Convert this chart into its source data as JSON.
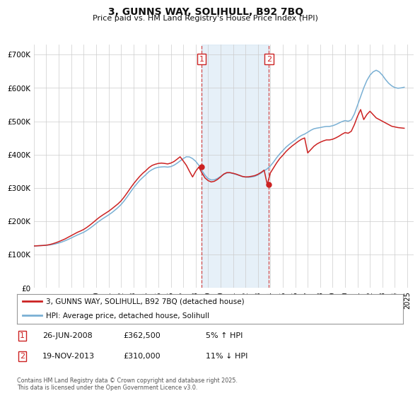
{
  "title": "3, GUNNS WAY, SOLIHULL, B92 7BQ",
  "subtitle": "Price paid vs. HM Land Registry's House Price Index (HPI)",
  "ylabel_ticks": [
    "£0",
    "£100K",
    "£200K",
    "£300K",
    "£400K",
    "£500K",
    "£600K",
    "£700K"
  ],
  "ytick_vals": [
    0,
    100000,
    200000,
    300000,
    400000,
    500000,
    600000,
    700000
  ],
  "ylim": [
    0,
    730000
  ],
  "xlim_start": 1995.0,
  "xlim_end": 2025.5,
  "marker1_date": 2008.48,
  "marker2_date": 2013.89,
  "marker1_label": "1",
  "marker2_label": "2",
  "marker1_price": 362500,
  "marker2_price": 310000,
  "shade_color": "#c8dff0",
  "shade_alpha": 0.45,
  "vline_color": "#cc2222",
  "vline_alpha": 0.8,
  "grid_color": "#cccccc",
  "legend_entries": [
    "3, GUNNS WAY, SOLIHULL, B92 7BQ (detached house)",
    "HPI: Average price, detached house, Solihull"
  ],
  "legend_colors": [
    "#cc2222",
    "#7ab0d4"
  ],
  "table_rows": [
    [
      "1",
      "26-JUN-2008",
      "£362,500",
      "5% ↑ HPI"
    ],
    [
      "2",
      "19-NOV-2013",
      "£310,000",
      "11% ↓ HPI"
    ]
  ],
  "footnote": "Contains HM Land Registry data © Crown copyright and database right 2025.\nThis data is licensed under the Open Government Licence v3.0.",
  "bg_color": "#ffffff",
  "plot_bg_color": "#ffffff",
  "hpi_color": "#7ab0d4",
  "price_color": "#cc2222",
  "hpi_data_x": [
    1995.0,
    1995.25,
    1995.5,
    1995.75,
    1996.0,
    1996.25,
    1996.5,
    1996.75,
    1997.0,
    1997.25,
    1997.5,
    1997.75,
    1998.0,
    1998.25,
    1998.5,
    1998.75,
    1999.0,
    1999.25,
    1999.5,
    1999.75,
    2000.0,
    2000.25,
    2000.5,
    2000.75,
    2001.0,
    2001.25,
    2001.5,
    2001.75,
    2002.0,
    2002.25,
    2002.5,
    2002.75,
    2003.0,
    2003.25,
    2003.5,
    2003.75,
    2004.0,
    2004.25,
    2004.5,
    2004.75,
    2005.0,
    2005.25,
    2005.5,
    2005.75,
    2006.0,
    2006.25,
    2006.5,
    2006.75,
    2007.0,
    2007.25,
    2007.5,
    2007.75,
    2008.0,
    2008.25,
    2008.5,
    2008.75,
    2009.0,
    2009.25,
    2009.5,
    2009.75,
    2010.0,
    2010.25,
    2010.5,
    2010.75,
    2011.0,
    2011.25,
    2011.5,
    2011.75,
    2012.0,
    2012.25,
    2012.5,
    2012.75,
    2013.0,
    2013.25,
    2013.5,
    2013.75,
    2014.0,
    2014.25,
    2014.5,
    2014.75,
    2015.0,
    2015.25,
    2015.5,
    2015.75,
    2016.0,
    2016.25,
    2016.5,
    2016.75,
    2017.0,
    2017.25,
    2017.5,
    2017.75,
    2018.0,
    2018.25,
    2018.5,
    2018.75,
    2019.0,
    2019.25,
    2019.5,
    2019.75,
    2020.0,
    2020.25,
    2020.5,
    2020.75,
    2021.0,
    2021.25,
    2021.5,
    2021.75,
    2022.0,
    2022.25,
    2022.5,
    2022.75,
    2023.0,
    2023.25,
    2023.5,
    2023.75,
    2024.0,
    2024.25,
    2024.5,
    2024.75
  ],
  "hpi_data_y": [
    126000,
    126500,
    127000,
    127500,
    128000,
    129000,
    130500,
    132500,
    135000,
    138000,
    141500,
    145500,
    150000,
    154500,
    159000,
    163000,
    167000,
    172500,
    179000,
    186000,
    193500,
    200500,
    207000,
    213000,
    219000,
    225500,
    233000,
    241000,
    250000,
    261000,
    273500,
    287000,
    300000,
    311500,
    322500,
    331500,
    340000,
    349000,
    355000,
    359500,
    362000,
    363000,
    363500,
    362500,
    364000,
    368000,
    374000,
    381000,
    388000,
    393500,
    393000,
    388000,
    380000,
    368000,
    352000,
    338000,
    328000,
    324000,
    324500,
    328500,
    334500,
    340500,
    345000,
    345500,
    343000,
    340500,
    337500,
    334500,
    332500,
    332000,
    333000,
    335000,
    339000,
    344500,
    351500,
    357500,
    366000,
    377500,
    390500,
    402000,
    412000,
    422000,
    430000,
    437000,
    444000,
    451500,
    457500,
    461500,
    467000,
    473000,
    477500,
    479500,
    481000,
    483000,
    484500,
    484500,
    486500,
    490000,
    494500,
    499000,
    502000,
    500000,
    504000,
    522000,
    548000,
    574000,
    600000,
    622000,
    638000,
    648000,
    653000,
    648000,
    638000,
    625000,
    614000,
    606000,
    601000,
    599000,
    600000,
    602000
  ],
  "price_data_x": [
    1995.0,
    1995.25,
    1995.5,
    1995.75,
    1996.0,
    1996.25,
    1996.5,
    1996.75,
    1997.0,
    1997.25,
    1997.5,
    1997.75,
    1998.0,
    1998.25,
    1998.5,
    1998.75,
    1999.0,
    1999.25,
    1999.5,
    1999.75,
    2000.0,
    2000.25,
    2000.5,
    2000.75,
    2001.0,
    2001.25,
    2001.5,
    2001.75,
    2002.0,
    2002.25,
    2002.5,
    2002.75,
    2003.0,
    2003.25,
    2003.5,
    2003.75,
    2004.0,
    2004.25,
    2004.5,
    2004.75,
    2005.0,
    2005.25,
    2005.5,
    2005.75,
    2006.0,
    2006.25,
    2006.5,
    2006.75,
    2007.0,
    2007.25,
    2007.5,
    2007.75,
    2008.0,
    2008.25,
    2008.5,
    2008.75,
    2009.0,
    2009.25,
    2009.5,
    2009.75,
    2010.0,
    2010.25,
    2010.5,
    2010.75,
    2011.0,
    2011.25,
    2011.5,
    2011.75,
    2012.0,
    2012.25,
    2012.5,
    2012.75,
    2013.0,
    2013.25,
    2013.5,
    2013.75,
    2014.0,
    2014.25,
    2014.5,
    2014.75,
    2015.0,
    2015.25,
    2015.5,
    2015.75,
    2016.0,
    2016.25,
    2016.5,
    2016.75,
    2017.0,
    2017.25,
    2017.5,
    2017.75,
    2018.0,
    2018.25,
    2018.5,
    2018.75,
    2019.0,
    2019.25,
    2019.5,
    2019.75,
    2020.0,
    2020.25,
    2020.5,
    2020.75,
    2021.0,
    2021.25,
    2021.5,
    2021.75,
    2022.0,
    2022.25,
    2022.5,
    2022.75,
    2023.0,
    2023.25,
    2023.5,
    2023.75,
    2024.0,
    2024.25,
    2024.5,
    2024.75
  ],
  "price_data_y": [
    126000,
    126500,
    127000,
    127500,
    128500,
    130000,
    132500,
    135500,
    139000,
    143000,
    147000,
    152000,
    157000,
    162000,
    167000,
    171000,
    175500,
    181500,
    188500,
    196000,
    204000,
    211500,
    218000,
    224000,
    230000,
    237000,
    244500,
    252000,
    261000,
    272500,
    285500,
    299000,
    312000,
    323500,
    334500,
    344000,
    352000,
    361000,
    367500,
    371000,
    373500,
    374500,
    373500,
    372000,
    374500,
    379000,
    386000,
    393500,
    381000,
    368000,
    350000,
    333000,
    350000,
    362500,
    345000,
    330000,
    322000,
    318000,
    320000,
    325500,
    333000,
    341500,
    346000,
    346000,
    344000,
    341500,
    338000,
    334500,
    333000,
    333500,
    335000,
    337000,
    341000,
    346500,
    353500,
    310000,
    345000,
    360000,
    375000,
    388000,
    398000,
    409000,
    418000,
    426000,
    433000,
    440000,
    446000,
    450000,
    405000,
    415000,
    425000,
    432000,
    437000,
    441000,
    444000,
    444000,
    446000,
    450000,
    455000,
    461000,
    466000,
    464000,
    470000,
    490000,
    515000,
    535000,
    505000,
    520000,
    530000,
    520000,
    510000,
    505000,
    500000,
    495000,
    490000,
    485000,
    483000,
    481000,
    480000,
    479000
  ],
  "xticks": [
    1995,
    1996,
    1997,
    1998,
    1999,
    2000,
    2001,
    2002,
    2003,
    2004,
    2005,
    2006,
    2007,
    2008,
    2009,
    2010,
    2011,
    2012,
    2013,
    2014,
    2015,
    2016,
    2017,
    2018,
    2019,
    2020,
    2021,
    2022,
    2023,
    2024,
    2025
  ]
}
